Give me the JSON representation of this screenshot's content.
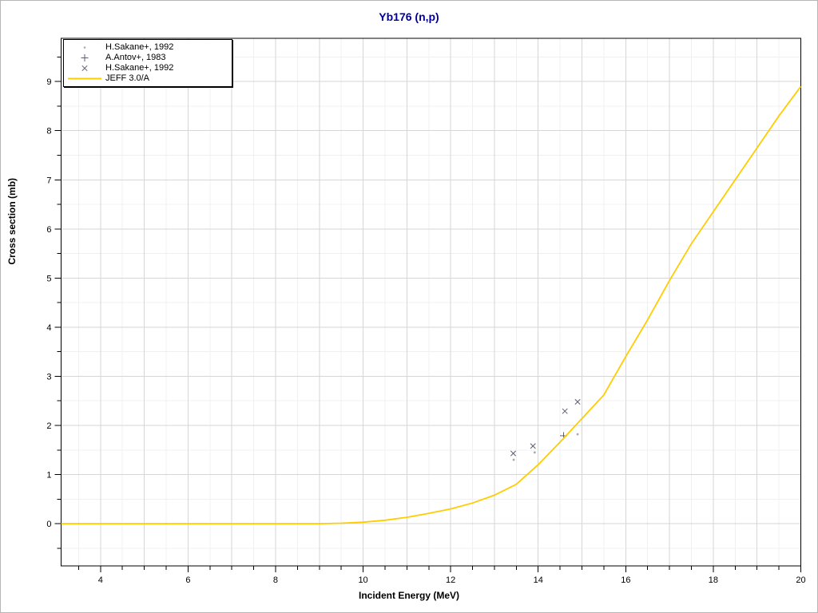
{
  "title": "Yb176 (n,p)",
  "axes": {
    "xlabel": "Incident Energy (MeV)",
    "ylabel": "Cross section (mb)"
  },
  "colors": {
    "title": "#000099",
    "curve": "#ffcc00",
    "marker_dark": "#5d5f75",
    "marker_light": "#a9a9ae",
    "axis": "#000000",
    "grid_major": "#d6d6d6",
    "grid_minor": "#f0f0f0",
    "tick_label": "#000000"
  },
  "legend": {
    "position": "top-left",
    "items": [
      {
        "marker": "dot",
        "color": "#a9a9ae",
        "label": "H.Sakane+, 1992"
      },
      {
        "marker": "plus",
        "color": "#5d5f75",
        "label": "A.Antov+, 1983"
      },
      {
        "marker": "x",
        "color": "#5d5f75",
        "label": "H.Sakane+, 1992"
      },
      {
        "marker": "line",
        "color": "#ffcc00",
        "label": "JEFF 3.0/A"
      }
    ]
  },
  "chart_data": {
    "type": "line",
    "title": "Yb176 (n,p)",
    "xlabel": "Incident Energy (MeV)",
    "ylabel": "Cross section (mb)",
    "xlim": [
      3.1,
      20
    ],
    "ylim": [
      -0.86,
      9.88
    ],
    "grid": true,
    "x_ticks": {
      "labeled": [
        4,
        6,
        8,
        10,
        12,
        14,
        16,
        18,
        20
      ],
      "minor_step": 0.5,
      "gridline_step": 1
    },
    "y_ticks": {
      "labeled": [
        0,
        1,
        2,
        3,
        4,
        5,
        6,
        7,
        8,
        9
      ],
      "minor_step": 0.5,
      "gridline_step": 1
    },
    "series": [
      {
        "name": "H.Sakane+, 1992",
        "style": "scatter",
        "marker": "dot",
        "color": "#a9a9ae",
        "points": [
          [
            13.44,
            1.3
          ],
          [
            13.92,
            1.45
          ],
          [
            14.9,
            1.82
          ]
        ]
      },
      {
        "name": "A.Antov+, 1983",
        "style": "scatter",
        "marker": "plus",
        "color": "#5d5f75",
        "points": [
          [
            14.58,
            1.79
          ]
        ]
      },
      {
        "name": "H.Sakane+, 1992",
        "style": "scatter",
        "marker": "x",
        "color": "#5d5f75",
        "points": [
          [
            13.43,
            1.43
          ],
          [
            13.88,
            1.58
          ],
          [
            14.61,
            2.29
          ],
          [
            14.9,
            2.48
          ]
        ]
      },
      {
        "name": "JEFF 3.0/A",
        "style": "line",
        "color": "#ffcc00",
        "points": [
          [
            3.1,
            0.0
          ],
          [
            9.0,
            0.0
          ],
          [
            9.5,
            0.01
          ],
          [
            10.0,
            0.03
          ],
          [
            10.5,
            0.07
          ],
          [
            11.0,
            0.13
          ],
          [
            11.5,
            0.21
          ],
          [
            12.0,
            0.3
          ],
          [
            12.5,
            0.42
          ],
          [
            13.0,
            0.58
          ],
          [
            13.5,
            0.8
          ],
          [
            14.0,
            1.2
          ],
          [
            14.5,
            1.66
          ],
          [
            15.0,
            2.14
          ],
          [
            15.5,
            2.62
          ],
          [
            16.0,
            3.4
          ],
          [
            16.5,
            4.15
          ],
          [
            17.0,
            4.95
          ],
          [
            17.5,
            5.7
          ],
          [
            18.0,
            6.35
          ],
          [
            18.5,
            7.0
          ],
          [
            19.0,
            7.65
          ],
          [
            19.5,
            8.3
          ],
          [
            20.0,
            8.9
          ]
        ]
      }
    ]
  }
}
